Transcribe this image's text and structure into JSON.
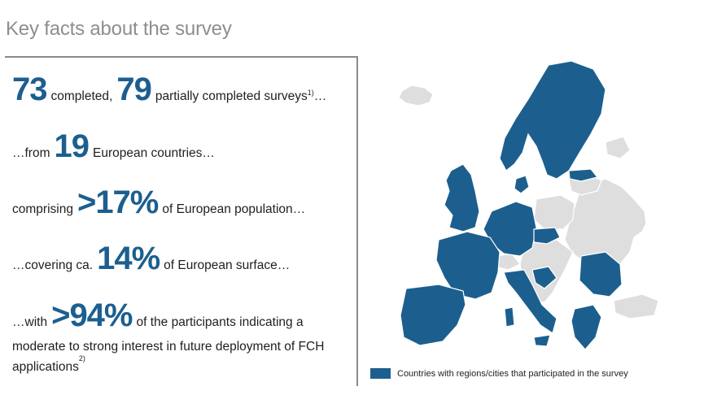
{
  "header": {
    "title": "Key facts about the survey"
  },
  "facts": {
    "f1": {
      "num1": "73",
      "text1": "completed,",
      "num2": "79",
      "text2": "partially completed surveys",
      "sup": "1)",
      "tail": "…"
    },
    "f2": {
      "pre": "…from",
      "num": "19",
      "text": "European countries…"
    },
    "f3": {
      "pre": "comprising",
      "num": ">17%",
      "text": "of European population…"
    },
    "f4": {
      "pre": "…covering ca.",
      "num": "14%",
      "text": "of European surface…"
    },
    "f5": {
      "pre": "…with",
      "num": ">94%",
      "text": "of the participants indicating a",
      "line2": "moderate to strong interest in future deployment of FCH",
      "line3": "applications",
      "sup": "2)"
    }
  },
  "map": {
    "legend_label": "Countries with regions/cities that participated in the survey",
    "participating_color": "#1c5f8f",
    "non_participating_color": "#dedede"
  }
}
